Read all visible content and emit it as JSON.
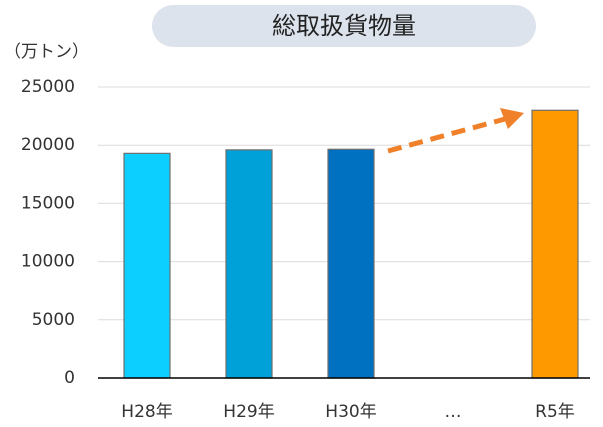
{
  "chart_data": {
    "type": "bar",
    "title": "総取扱貨物量",
    "y_axis_label": "（万トン）",
    "categories": [
      "H28年",
      "H29年",
      "H30年",
      "…",
      "R5年"
    ],
    "values": [
      19300,
      19600,
      19650,
      null,
      23000
    ],
    "colors": [
      "#0dcfff",
      "#00a0d8",
      "#0070c0",
      null,
      "#ff9900"
    ],
    "ylim": [
      0,
      25000
    ],
    "yticks": [
      0,
      5000,
      10000,
      15000,
      20000,
      25000
    ],
    "grid": true
  }
}
